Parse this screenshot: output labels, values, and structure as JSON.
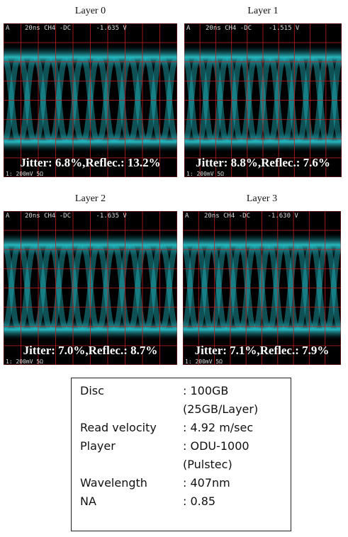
{
  "panels": [
    {
      "title": "Layer 0",
      "header": {
        "channel": "A",
        "setting": "20ns CH4 -DC",
        "level": "-1.635 V"
      },
      "result": "Jitter: 6.8%,Reflec.: 13.2%",
      "scale": "1: 200mV 5Ω"
    },
    {
      "title": "Layer 1",
      "header": {
        "channel": "A",
        "setting": "20ns CH4 -DC",
        "level": "-1.515 V"
      },
      "result": "Jitter: 8.8%,Reflec.: 7.6%",
      "scale": "1: 200mV 5Ω"
    },
    {
      "title": "Layer 2",
      "header": {
        "channel": "A",
        "setting": "20ns CH4 -DC",
        "level": "-1.635 V"
      },
      "result": "Jitter: 7.0%,Reflec.: 8.7%",
      "scale": "1: 200mV 5Ω"
    },
    {
      "title": "Layer 3",
      "header": {
        "channel": "A",
        "setting": "20ns CH4 -DC",
        "level": "-1.630 V"
      },
      "result": "Jitter: 7.1%,Reflec.: 7.9%",
      "scale": "1: 200mV 5Ω"
    }
  ],
  "specs": {
    "rows": [
      {
        "label": "Disc",
        "values": [
          ": 100GB",
          "(25GB/Layer)"
        ]
      },
      {
        "label": "Read velocity",
        "values": [
          ": 4.92 m/sec"
        ]
      },
      {
        "label": "Player",
        "values": [
          ": ODU-1000",
          "(Pulstec)"
        ]
      },
      {
        "label": "Wavelength",
        "values": [
          ": 407nm"
        ]
      },
      {
        "label": "NA",
        "values": [
          ": 0.85"
        ]
      }
    ]
  }
}
